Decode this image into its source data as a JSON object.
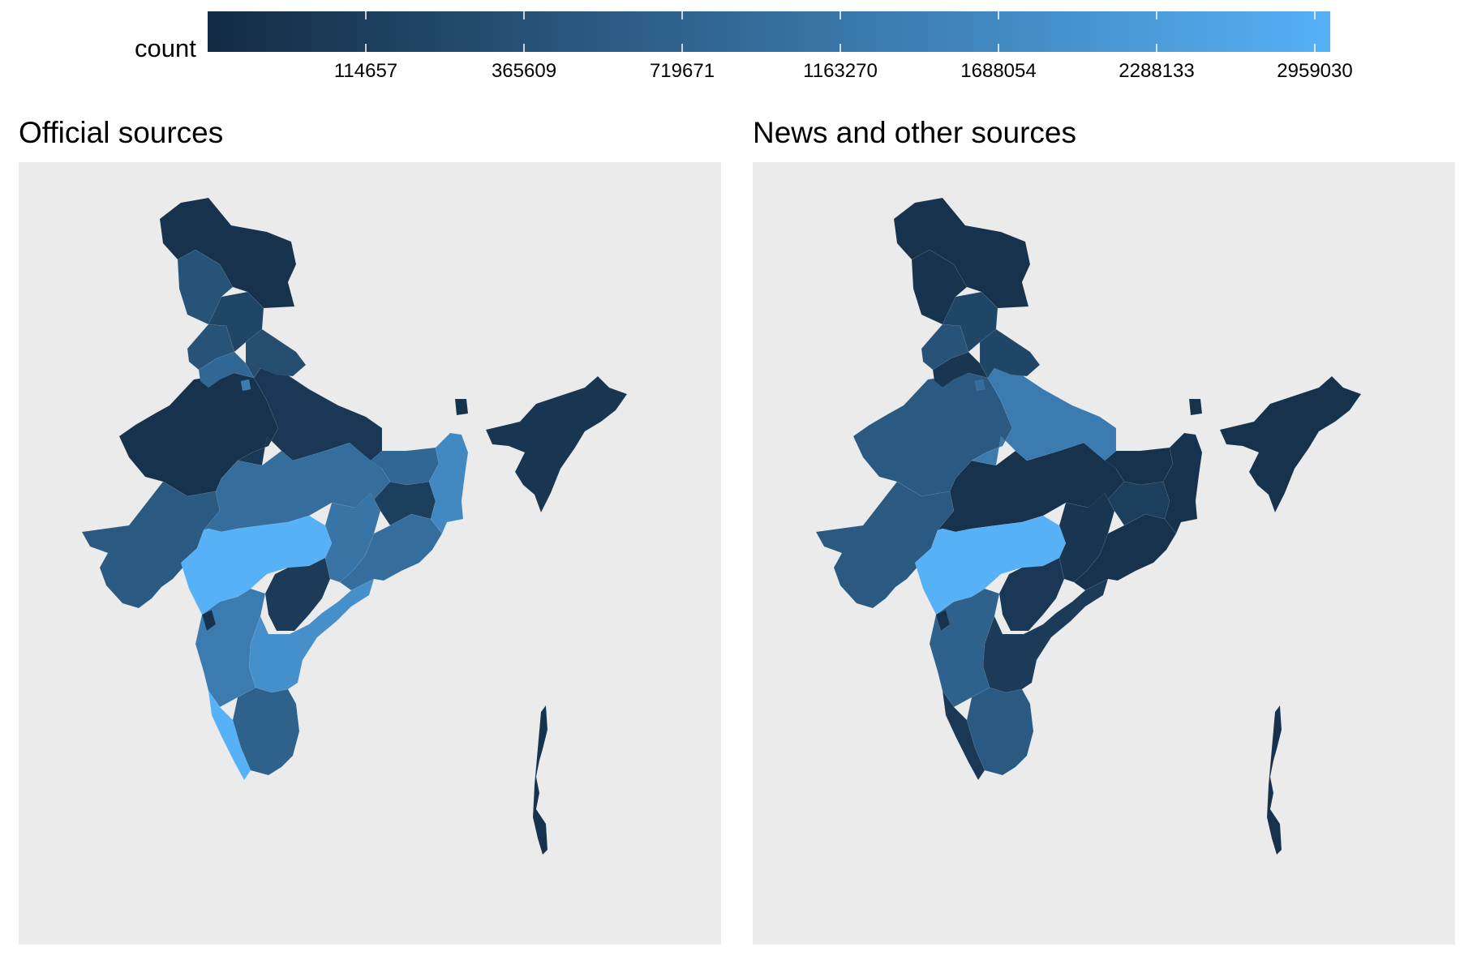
{
  "legend": {
    "title": "count",
    "ticks": [
      "114657",
      "365609",
      "719671",
      "1163270",
      "1688054",
      "2288133",
      "2959030"
    ],
    "color_low": "#132b43",
    "color_high": "#56b1f7"
  },
  "panels": [
    {
      "title": "Official sources",
      "levels": {
        "kashmir": 0.05,
        "ladakh_west": 0.3,
        "himachal": 0.2,
        "punjab": 0.3,
        "haryana": 0.45,
        "delhi": 0.6,
        "uttarakhand": 0.25,
        "rajasthan": 0.05,
        "gujarat": 0.35,
        "madhya_pradesh": 0.5,
        "uttar_pradesh": 0.1,
        "bihar": 0.45,
        "jharkhand": 0.15,
        "west_bengal": 0.7,
        "chhattisgarh": 0.55,
        "odisha": 0.5,
        "maharashtra": 1.0,
        "telangana": 0.12,
        "andhra_pradesh": 0.75,
        "karnataka": 0.6,
        "goa": 0.05,
        "kerala": 1.0,
        "tamil_nadu": 0.4,
        "northeast": 0.08,
        "sikkim": 0.05,
        "andaman": 0.05
      }
    },
    {
      "title": "News and other sources",
      "levels": {
        "kashmir": 0.05,
        "ladakh_west": 0.06,
        "himachal": 0.2,
        "punjab": 0.3,
        "haryana": 0.08,
        "delhi": 0.5,
        "uttarakhand": 0.2,
        "rajasthan": 0.35,
        "gujarat": 0.35,
        "madhya_pradesh": 0.05,
        "uttar_pradesh": 0.6,
        "bihar": 0.05,
        "jharkhand": 0.15,
        "west_bengal": 0.05,
        "chhattisgarh": 0.08,
        "odisha": 0.05,
        "maharashtra": 1.0,
        "telangana": 0.1,
        "andhra_pradesh": 0.12,
        "karnataka": 0.4,
        "goa": 0.05,
        "kerala": 0.1,
        "tamil_nadu": 0.35,
        "northeast": 0.05,
        "sikkim": 0.05,
        "andaman": 0.05
      }
    }
  ]
}
